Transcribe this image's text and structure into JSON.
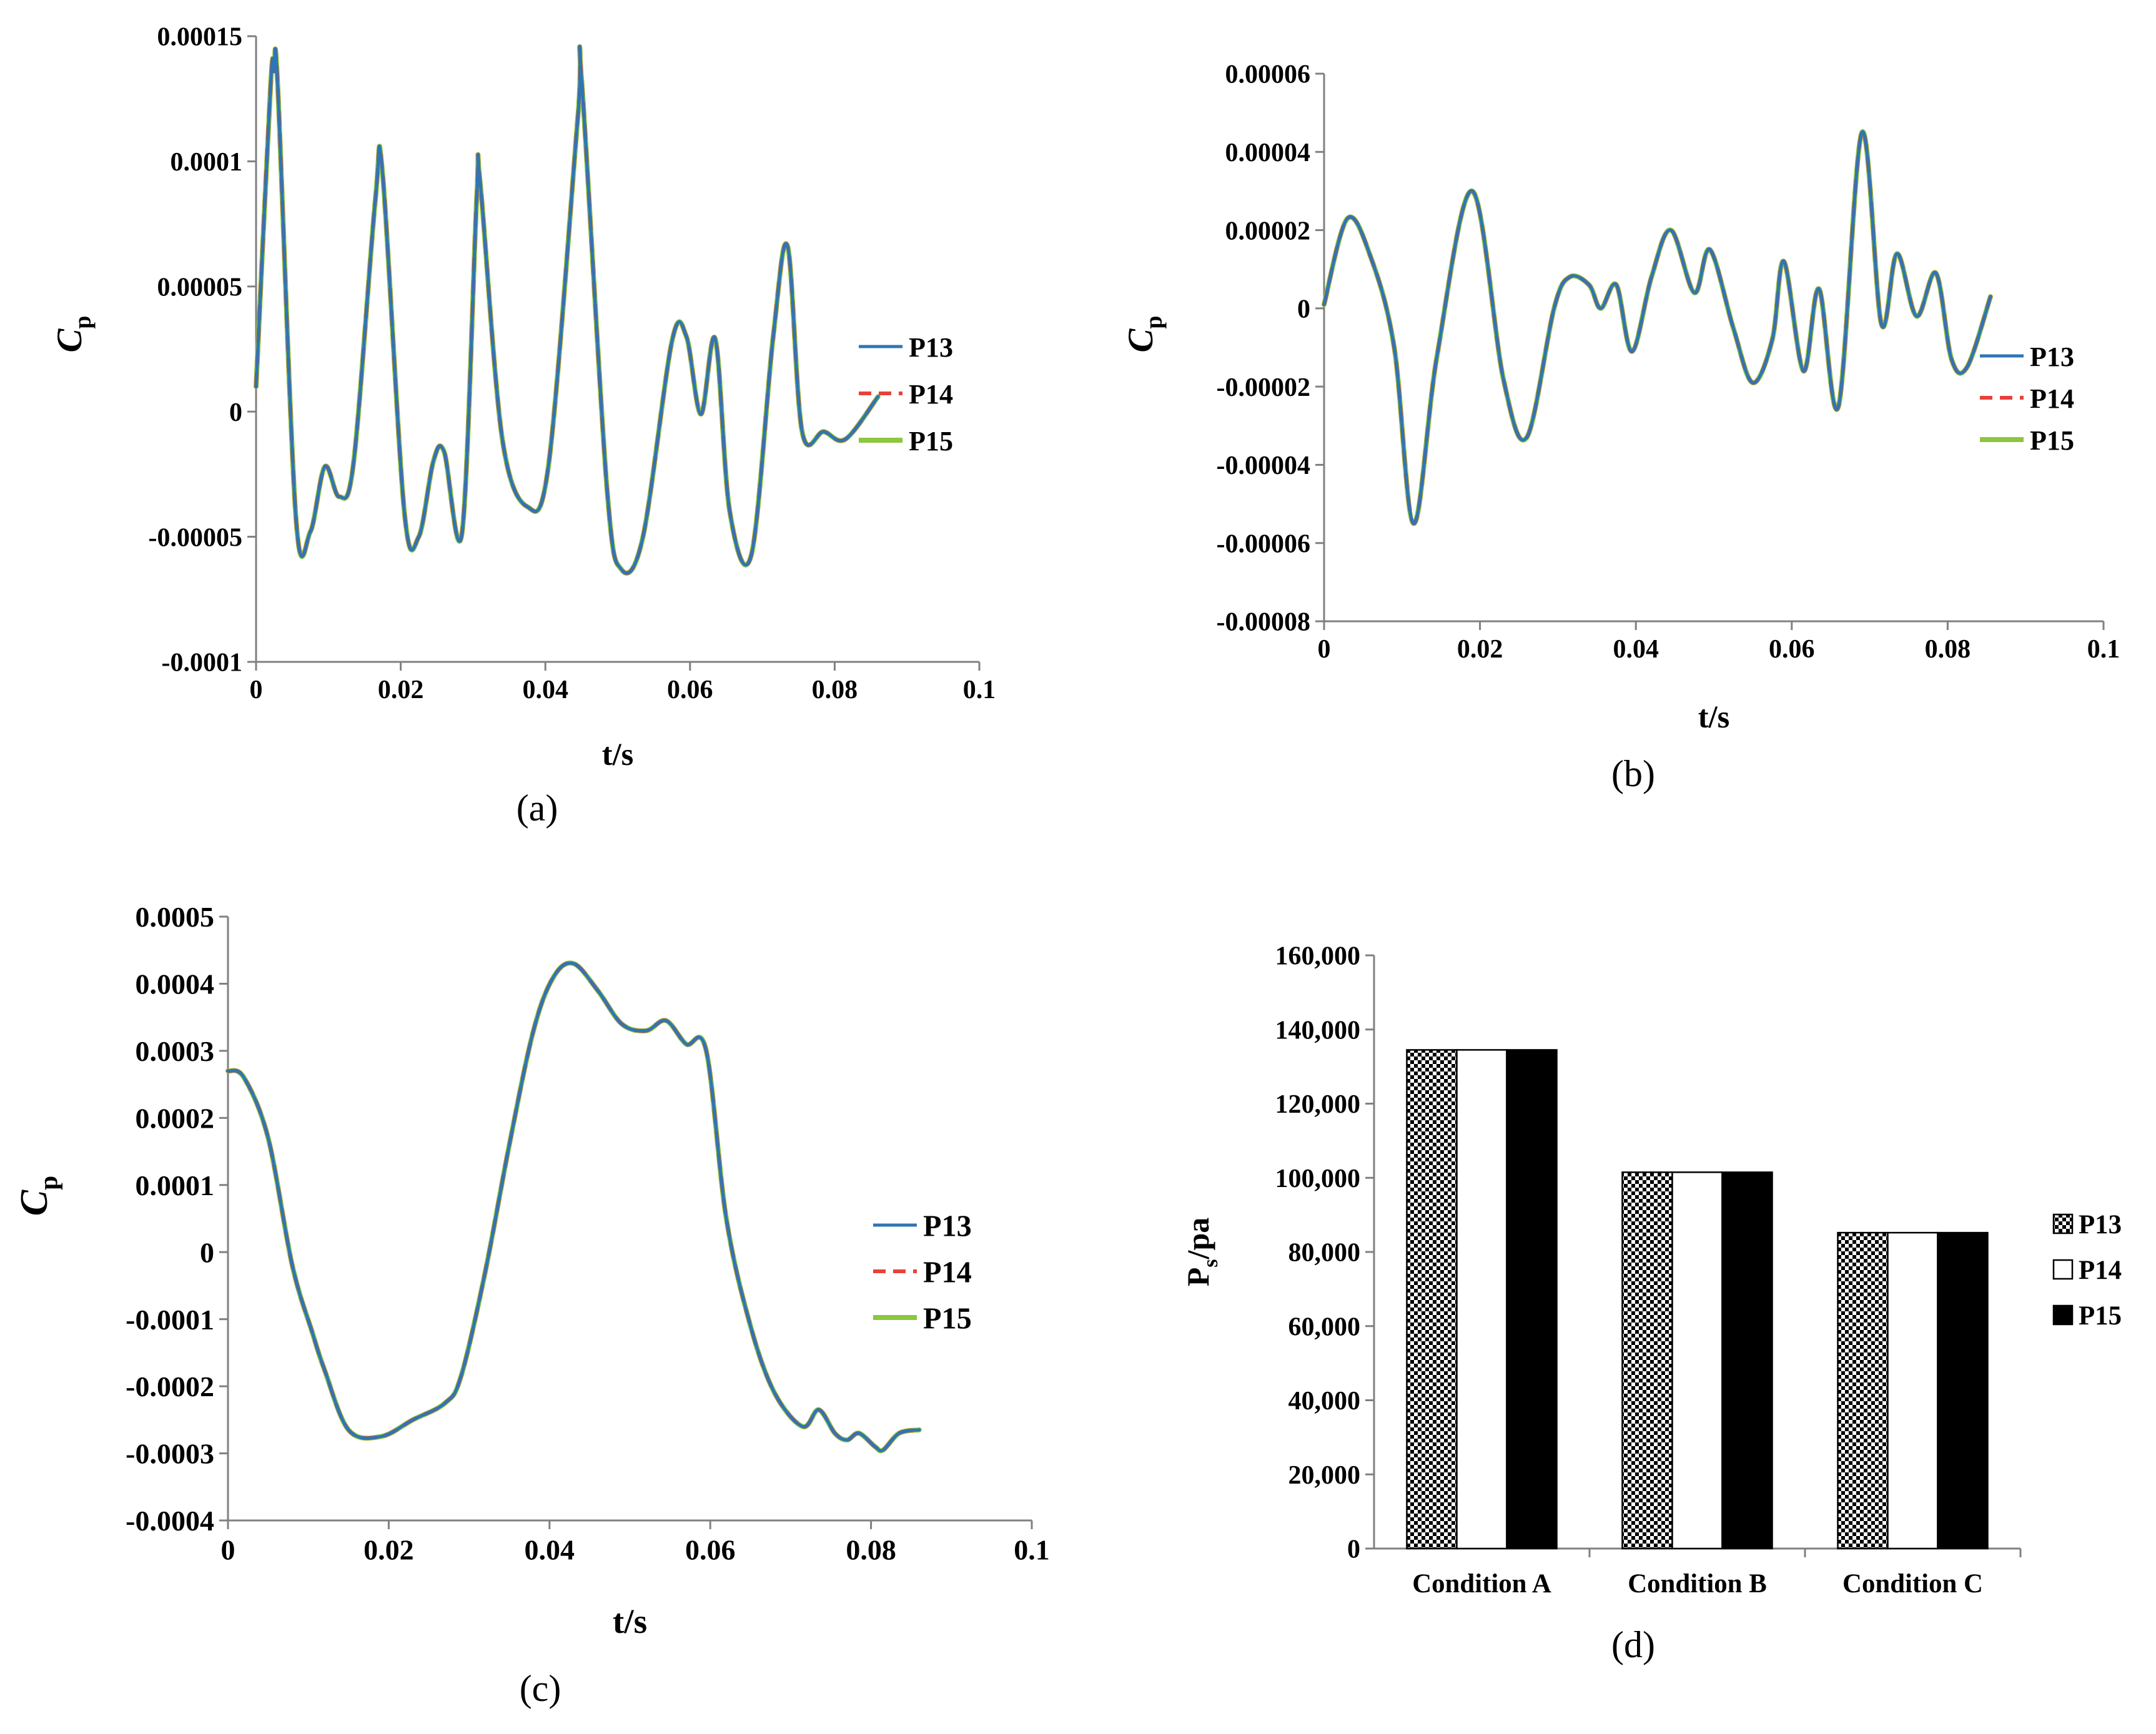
{
  "captions": [
    "(a)",
    "(b)",
    "(c)",
    "(d)"
  ],
  "colors": {
    "P13": "#2e75b6",
    "P14": "#e8413c",
    "P15": "#8dc63f",
    "axis": "#808080"
  },
  "chart_data": [
    {
      "type": "line",
      "panel": "(a)",
      "xlabel": "t/s",
      "ylabel": "C",
      "ylabel_sub": "p",
      "xlim": [
        0,
        0.1
      ],
      "ylim": [
        -0.0001,
        0.00015
      ],
      "x_ticks": [
        0,
        0.02,
        0.04,
        0.06,
        0.08,
        0.1
      ],
      "x_tick_labels": [
        "0",
        "0.02",
        "0.04",
        "0.06",
        "0.08",
        "0.1"
      ],
      "y_ticks": [
        -0.0001,
        -5e-05,
        0,
        5e-05,
        0.0001,
        0.00015
      ],
      "y_tick_labels": [
        "-0.0001",
        "-0.00005",
        "0",
        "0.00005",
        "0.0001",
        "0.00015"
      ],
      "legend": "right",
      "series": [
        {
          "name": "P13"
        },
        {
          "name": "P14"
        },
        {
          "name": "P15"
        }
      ],
      "x": [
        0,
        0.002,
        0.0025,
        0.003,
        0.0055,
        0.0075,
        0.0095,
        0.0115,
        0.0135,
        0.0165,
        0.0175,
        0.0205,
        0.0225,
        0.0245,
        0.026,
        0.0285,
        0.0305,
        0.031,
        0.034,
        0.0375,
        0.0405,
        0.0445,
        0.045,
        0.0485,
        0.0505,
        0.0535,
        0.0575,
        0.0595,
        0.0615,
        0.0635,
        0.0655,
        0.0685,
        0.0715,
        0.0735,
        0.0755,
        0.0785,
        0.0815,
        0.086
      ],
      "y": [
        1e-05,
        0.00013,
        0.000136,
        0.00013,
        -4.2e-05,
        -4.8e-05,
        -2.2e-05,
        -3.4e-05,
        -2e-05,
        8.5e-05,
        9.5e-05,
        -4e-05,
        -5e-05,
        -2e-05,
        -1.6e-05,
        -4.8e-05,
        8.5e-05,
        9.1e-05,
        -1e-05,
        -3.8e-05,
        -2e-05,
        0.000118,
        0.000133,
        -3e-05,
        -6.3e-05,
        -5e-05,
        2.8e-05,
        3e-05,
        -1e-06,
        2.9e-05,
        -4e-05,
        -5.7e-05,
        3e-05,
        6.6e-05,
        -8e-06,
        -8e-06,
        -1.1e-05,
        6e-06
      ]
    },
    {
      "type": "line",
      "panel": "(b)",
      "xlabel": "t/s",
      "ylabel": "C",
      "ylabel_sub": "p",
      "xlim": [
        0,
        0.1
      ],
      "ylim": [
        -8e-05,
        6e-05
      ],
      "x_ticks": [
        0,
        0.02,
        0.04,
        0.06,
        0.08,
        0.1
      ],
      "x_tick_labels": [
        "0",
        "0.02",
        "0.04",
        "0.06",
        "0.08",
        "0.1"
      ],
      "y_ticks": [
        -8e-05,
        -6e-05,
        -4e-05,
        -2e-05,
        0,
        2e-05,
        4e-05,
        6e-05
      ],
      "y_tick_labels": [
        "-0.00008",
        "-0.00006",
        "-0.00004",
        "-0.00002",
        "0",
        "0.00002",
        "0.00004",
        "0.00006"
      ],
      "legend": "right",
      "series": [
        {
          "name": "P13"
        },
        {
          "name": "P14"
        },
        {
          "name": "P15"
        }
      ],
      "x": [
        0,
        0.003,
        0.006,
        0.009,
        0.0115,
        0.0145,
        0.019,
        0.023,
        0.026,
        0.0295,
        0.0315,
        0.034,
        0.0355,
        0.0375,
        0.0395,
        0.042,
        0.0445,
        0.0475,
        0.0495,
        0.0525,
        0.055,
        0.0575,
        0.059,
        0.0615,
        0.0635,
        0.066,
        0.069,
        0.0715,
        0.0735,
        0.076,
        0.0785,
        0.0805,
        0.0825,
        0.0855
      ],
      "y": [
        1e-06,
        2.3e-05,
        1.3e-05,
        -1e-05,
        -5.5e-05,
        -1.2e-05,
        3e-05,
        -1.8e-05,
        -3.3e-05,
        0.0,
        8e-06,
        6e-06,
        0.0,
        6e-06,
        -1.1e-05,
        8e-06,
        2e-05,
        4e-06,
        1.5e-05,
        -5e-06,
        -1.9e-05,
        -8e-06,
        1.2e-05,
        -1.6e-05,
        5e-06,
        -2.5e-05,
        4.5e-05,
        -4e-06,
        1.4e-05,
        -2e-06,
        9e-06,
        -1.3e-05,
        -1.5e-05,
        3e-06
      ]
    },
    {
      "type": "line",
      "panel": "(c)",
      "xlabel": "t/s",
      "ylabel": "C",
      "ylabel_sub": "p",
      "xlim": [
        0,
        0.1
      ],
      "ylim": [
        -0.0004,
        0.0005
      ],
      "x_ticks": [
        0,
        0.02,
        0.04,
        0.06,
        0.08,
        0.1
      ],
      "x_tick_labels": [
        "0",
        "0.02",
        "0.04",
        "0.06",
        "0.08",
        "0.1"
      ],
      "y_ticks": [
        -0.0004,
        -0.0003,
        -0.0002,
        -0.0001,
        0,
        0.0001,
        0.0002,
        0.0003,
        0.0004,
        0.0005
      ],
      "y_tick_labels": [
        "-0.0004",
        "-0.0003",
        "-0.0002",
        "-0.0001",
        "0",
        "0.0001",
        "0.0002",
        "0.0003",
        "0.0004",
        "0.0005"
      ],
      "legend": "right",
      "series": [
        {
          "name": "P13"
        },
        {
          "name": "P14"
        },
        {
          "name": "P15"
        }
      ],
      "x": [
        0,
        0.002,
        0.005,
        0.008,
        0.0105,
        0.012,
        0.015,
        0.019,
        0.023,
        0.027,
        0.029,
        0.032,
        0.035,
        0.038,
        0.0405,
        0.043,
        0.046,
        0.049,
        0.052,
        0.0545,
        0.057,
        0.0595,
        0.062,
        0.065,
        0.068,
        0.0715,
        0.0735,
        0.0755,
        0.077,
        0.0785,
        0.0805,
        0.0815,
        0.0835,
        0.086
      ],
      "y": [
        0.00027,
        0.00026,
        0.00017,
        -2e-05,
        -0.00012,
        -0.000175,
        -0.000265,
        -0.000275,
        -0.00025,
        -0.000225,
        -0.000185,
        -3e-05,
        0.00016,
        0.00033,
        0.00041,
        0.00043,
        0.00039,
        0.00034,
        0.00033,
        0.000345,
        0.00031,
        0.0003,
        5e-05,
        -0.00011,
        -0.00021,
        -0.00026,
        -0.000235,
        -0.00027,
        -0.00028,
        -0.00027,
        -0.00029,
        -0.000295,
        -0.00027,
        -0.000265
      ]
    },
    {
      "type": "bar",
      "panel": "(d)",
      "xlabel": "",
      "ylabel": "P",
      "ylabel_sub": "s",
      "ylabel_suffix": "/pa",
      "ylim": [
        0,
        160000
      ],
      "y_ticks": [
        0,
        20000,
        40000,
        60000,
        80000,
        100000,
        120000,
        140000,
        160000
      ],
      "y_tick_labels": [
        "0",
        "20,000",
        "40,000",
        "60,000",
        "80,000",
        "100,000",
        "120,000",
        "140,000",
        "160,000"
      ],
      "categories": [
        "Condition A",
        "Condition B",
        "Condition C"
      ],
      "legend": "right",
      "series": [
        {
          "name": "P13",
          "fill": "checkered",
          "values": [
            134500,
            101500,
            85200
          ]
        },
        {
          "name": "P14",
          "fill": "white",
          "values": [
            134500,
            101500,
            85200
          ]
        },
        {
          "name": "P15",
          "fill": "black",
          "values": [
            134500,
            101500,
            85200
          ]
        }
      ]
    }
  ]
}
